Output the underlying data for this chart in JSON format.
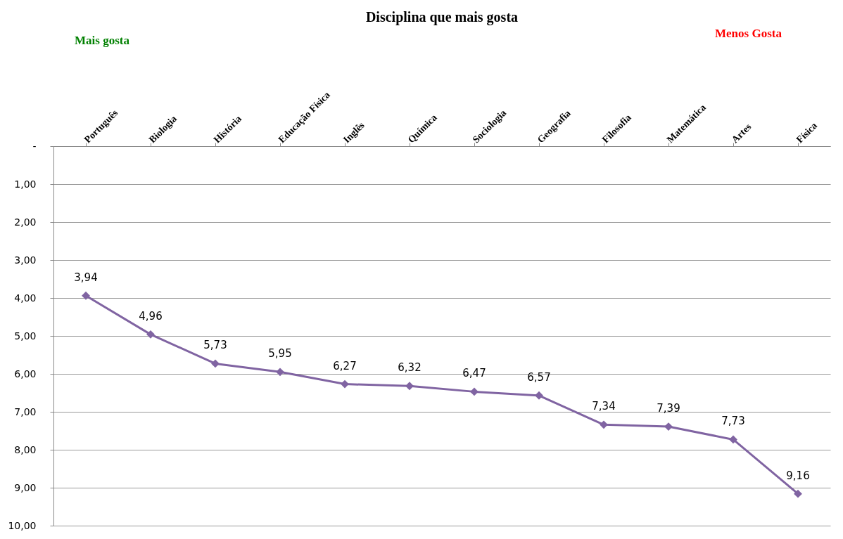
{
  "chart_data": {
    "type": "line",
    "title": "Disciplina que mais gosta",
    "annotations": [
      "Mais gosta",
      "Menos Gosta"
    ],
    "categories": [
      "Português",
      "Biologia",
      "História",
      "Educação Física",
      "Inglês",
      "Química",
      "Sociologia",
      "Geografia",
      "Filosofia",
      "Matemática",
      "Artes",
      "Física"
    ],
    "series": [
      {
        "color": "#8064a2",
        "values": [
          3.94,
          4.96,
          5.73,
          5.95,
          6.27,
          6.32,
          6.47,
          6.57,
          7.34,
          7.39,
          7.73,
          9.16
        ],
        "value_labels": [
          "3,94",
          "4,96",
          "5,73",
          "5,95",
          "6,27",
          "6,32",
          "6,47",
          "6,57",
          "7,34",
          "7,39",
          "7,73",
          "9,16"
        ]
      }
    ],
    "ylim": [
      10,
      0
    ],
    "yticks": [
      {
        "value": 0,
        "label": "-"
      },
      {
        "value": 1,
        "label": "1,00"
      },
      {
        "value": 2,
        "label": "2,00"
      },
      {
        "value": 3,
        "label": "3,00"
      },
      {
        "value": 4,
        "label": "4,00"
      },
      {
        "value": 5,
        "label": "5,00"
      },
      {
        "value": 6,
        "label": "6,00"
      },
      {
        "value": 7,
        "label": "7,00"
      },
      {
        "value": 8,
        "label": "8,00"
      },
      {
        "value": 9,
        "label": "9,00"
      },
      {
        "value": 10,
        "label": "10,00"
      }
    ],
    "grid": "y",
    "marker": "diamond",
    "line_style": "solid"
  }
}
